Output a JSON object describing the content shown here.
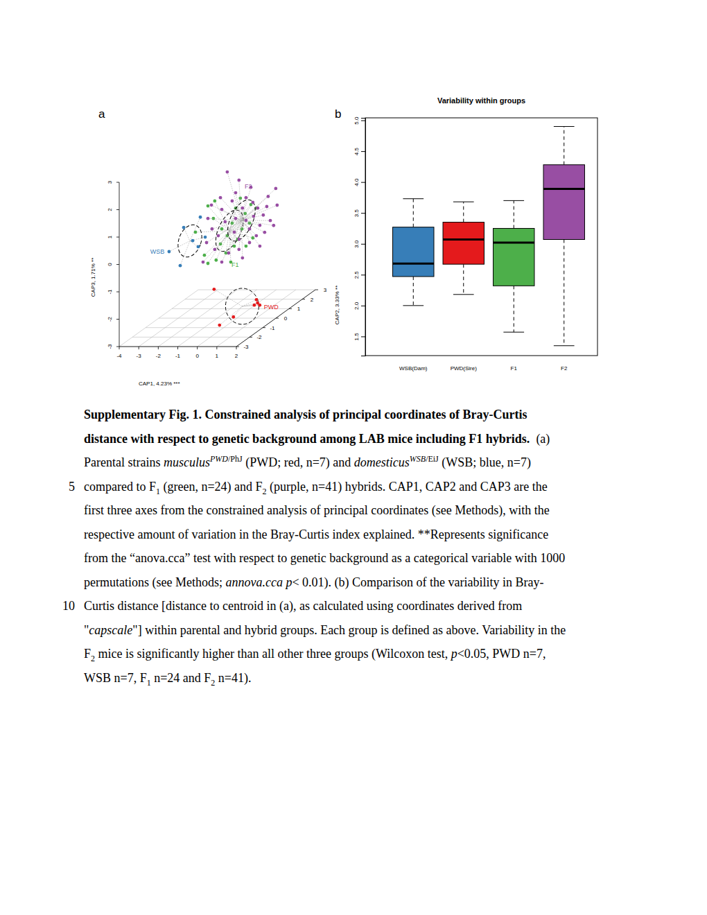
{
  "chart_data": [
    {
      "type": "scatter3d",
      "panel_label": "a",
      "xlabel": "CAP1, 4.23% ***",
      "ylabel": "CAP2, 3.33% **",
      "zlabel": "CAP3, 1.71% **",
      "xlim": [
        -4,
        2
      ],
      "ylim": [
        -3,
        3
      ],
      "zlim": [
        -3,
        3
      ],
      "xticks": [
        -4,
        -3,
        -2,
        -1,
        0,
        1,
        2
      ],
      "yticks": [
        -3,
        -2,
        -1,
        0,
        1,
        2,
        3
      ],
      "zticks": [
        -3,
        -2,
        -1,
        0,
        1,
        2,
        3
      ],
      "grid": true,
      "series": [
        {
          "name": "WSB",
          "color": "#377EB8",
          "x": [
            -3.47,
            -2.9,
            -2.72,
            -1.87,
            -1.98,
            -2.26,
            -1.62
          ],
          "y": [
            0,
            0,
            0,
            0,
            0,
            0,
            0
          ],
          "z": [
            -0.57,
            -1.08,
            0.31,
            0.69,
            -0.39,
            -0.17,
            -0.04
          ]
        },
        {
          "name": "PWD",
          "color": "#E41A1C",
          "x": [
            -1.84,
            0.33,
            0.22,
            0.5,
            0.5,
            -0.21,
            0.39
          ],
          "y": [
            1,
            1,
            1,
            1,
            -1,
            -1,
            1
          ],
          "z": [
            -2.29,
            -2.67,
            -2.87,
            -2.87,
            -2.61,
            -2.91,
            -2.79
          ]
        },
        {
          "name": "F1",
          "color": "#4DAF4A",
          "x": [
            -1.48,
            -1.13,
            -2.12,
            -1.66,
            -1.48,
            -0.84,
            -0.56,
            -0.49,
            -0.24,
            -0.06,
            0.18,
            0.43,
            0.26,
            0.65,
            0.04,
            -0.31,
            0.47,
            1.0,
            0.82,
            -0.77,
            -1.2,
            -0.13,
            -1.06,
            0.72
          ],
          "y": [
            0,
            0,
            0,
            0,
            0,
            0,
            0,
            0,
            0,
            0,
            0,
            0,
            0,
            0,
            0,
            0,
            0,
            0,
            0,
            0,
            0,
            0,
            0,
            0
          ],
          "z": [
            1.1,
            1.28,
            0.14,
            -0.7,
            -1.0,
            -0.29,
            -0.62,
            0.01,
            0.47,
            1.02,
            1.38,
            0.82,
            0.26,
            0.47,
            -0.12,
            -0.95,
            -0.37,
            1.02,
            -0.07,
            0.26,
            0.64,
            -0.37,
            -0.88,
            1.15
          ]
        },
        {
          "name": "F2",
          "color": "#984EA3",
          "x": [
            -0.49,
            0.11,
            1.32,
            0.93,
            1.39,
            0.47,
            0.82,
            1.07,
            -1.3,
            -0.77,
            -0.24,
            0.29,
            0.68,
            1.04,
            0.65,
            1.0,
            0.75,
            1.21,
            -0.06,
            -0.6,
            -0.95,
            -1.55,
            -1.13,
            -0.42,
            0.11,
            0.65,
            1.18,
            0.29,
            -0.77,
            -1.73,
            -1.27,
            -0.13,
            0.47,
            0.86,
            0.11,
            1.18,
            0.86,
            0.72,
            -0.06,
            -0.84,
            -1.48
          ],
          "y": [
            0,
            0,
            1,
            1,
            1,
            0,
            0,
            0,
            0,
            0,
            0,
            0,
            1,
            1,
            0,
            0,
            1,
            1,
            0,
            0,
            0,
            0,
            0,
            0,
            0,
            0,
            0,
            0,
            0,
            0,
            0,
            0,
            0,
            0,
            0,
            0,
            1,
            0,
            0,
            0,
            0
          ],
          "z": [
            2.34,
            2.04,
            1.39,
            1.1,
            0.78,
            1.4,
            1.23,
            1.02,
            1.13,
            0.97,
            1.28,
            1.02,
            0.42,
            0.22,
            0.26,
            0.01,
            -0.21,
            0.04,
            0.64,
            0.52,
            0.01,
            -0.24,
            -0.49,
            -0.62,
            -0.49,
            -0.24,
            -0.37,
            -0.8,
            -0.95,
            -0.95,
            0.26,
            0.14,
            0.57,
            0.72,
            -0.12,
            0.39,
            0.73,
            1.78,
            1.58,
            1.4,
            0.64
          ]
        }
      ]
    },
    {
      "type": "box",
      "panel_label": "b",
      "title": "Variability within groups",
      "categories": [
        "WSB(Dam)",
        "PWD(Sire)",
        "F1",
        "F2"
      ],
      "colors": [
        "#377EB8",
        "#E41A1C",
        "#4DAF4A",
        "#984EA3"
      ],
      "min": [
        2.0,
        2.18,
        1.57,
        1.35
      ],
      "q1": [
        2.47,
        2.67,
        2.32,
        3.07
      ],
      "median": [
        2.68,
        3.07,
        3.02,
        3.89
      ],
      "q3": [
        3.27,
        3.35,
        3.25,
        4.28
      ],
      "max": [
        3.73,
        3.68,
        3.7,
        4.9
      ],
      "ylim": [
        1.19,
        5.04
      ],
      "yticks": [
        1.5,
        {
          "value": 2,
          "label": "2.0"
        },
        2.5,
        {
          "value": 3,
          "label": "3.0"
        },
        3.5,
        {
          "value": 4,
          "label": "4.0"
        },
        4.5,
        {
          "value": 5,
          "label": "5.0"
        }
      ]
    }
  ],
  "caption": {
    "lines": [
      {
        "runs": [
          {
            "text": "Supplementary Fig. 1. Constrained analysis of principal coordinates of Bray-Curtis",
            "format": "bold"
          }
        ]
      },
      {
        "runs": [
          {
            "text": "distance with respect to genetic background among LAB mice including F1 hybrids.",
            "format": "bold"
          },
          {
            "text": "  (a)"
          }
        ]
      },
      {
        "runs": [
          {
            "text": "Parental strains "
          },
          {
            "text": "musculus",
            "format": "italic"
          },
          {
            "text": "PWD",
            "format": "italic-sup"
          },
          {
            "text": "/PhJ",
            "format": "sup"
          },
          {
            "text": " (PWD; red, n=7) and "
          },
          {
            "text": "domesticus",
            "format": "italic"
          },
          {
            "text": "WSB",
            "format": "italic-sup"
          },
          {
            "text": "/EiJ",
            "format": "sup"
          },
          {
            "text": " (WSB; blue, n=7)"
          }
        ]
      },
      {
        "line_number": 5,
        "runs": [
          {
            "text": "compared to F"
          },
          {
            "text": "1",
            "format": "sub"
          },
          {
            "text": " (green, n=24) and F"
          },
          {
            "text": "2",
            "format": "sub"
          },
          {
            "text": " (purple, n=41) hybrids. CAP1, CAP2 and CAP3 are the"
          }
        ]
      },
      {
        "runs": [
          {
            "text": "first three axes from the constrained analysis of principal coordinates (see Methods), with the"
          }
        ]
      },
      {
        "runs": [
          {
            "text": "respective amount of variation in the Bray-Curtis index explained. **Represents significance"
          }
        ]
      },
      {
        "runs": [
          {
            "text": "from the “anova.cca” test with respect to genetic background as a categorical variable with 1000"
          }
        ]
      },
      {
        "runs": [
          {
            "text": "permutations (see Methods; "
          },
          {
            "text": "annova.cca p",
            "format": "italic"
          },
          {
            "text": "< 0.01). (b) Comparison of the variability in Bray-"
          }
        ]
      },
      {
        "line_number": 10,
        "runs": [
          {
            "text": "Curtis distance [distance to centroid in (a), as calculated using coordinates derived from"
          }
        ]
      },
      {
        "runs": [
          {
            "text": "\""
          },
          {
            "text": "capscale",
            "format": "italic"
          },
          {
            "text": "\"] within parental and hybrid groups. Each group is defined as above. Variability in the"
          }
        ]
      },
      {
        "runs": [
          {
            "text": "F"
          },
          {
            "text": "2",
            "format": "sub"
          },
          {
            "text": " mice is significantly higher than all other three groups (Wilcoxon test, "
          },
          {
            "text": "p",
            "format": "italic"
          },
          {
            "text": "<0.05, PWD n=7,"
          }
        ]
      },
      {
        "runs": [
          {
            "text": "WSB n=7, F"
          },
          {
            "text": "1",
            "format": "sub"
          },
          {
            "text": " n=24 and F"
          },
          {
            "text": "2",
            "format": "sub"
          },
          {
            "text": " n=41)."
          }
        ]
      }
    ]
  }
}
